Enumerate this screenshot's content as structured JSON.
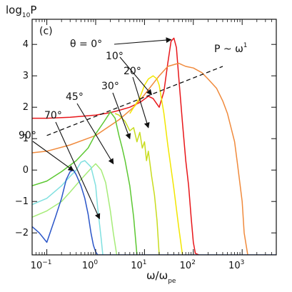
{
  "chart_data": {
    "type": "line",
    "panel_label": "(c)",
    "xlabel": "ω/ω",
    "xlabel_sub": "pe",
    "ylabel": "log",
    "ylabel_sub": "10",
    "ylabel_suffix": "P",
    "xscale": "log",
    "xlim": [
      0.05,
      5000
    ],
    "ylim": [
      -2.7,
      4.8
    ],
    "x_tick_labels": [
      {
        "base": "10",
        "exp": "−1",
        "value": 0.1
      },
      {
        "base": "10",
        "exp": "0",
        "value": 1
      },
      {
        "base": "10",
        "exp": "1",
        "value": 10
      },
      {
        "base": "10",
        "exp": "2",
        "value": 100
      },
      {
        "base": "10",
        "exp": "3",
        "value": 1000
      }
    ],
    "y_ticks": [
      -2,
      -1,
      0,
      1,
      2,
      3,
      4
    ],
    "y_tick_labels": [
      "−2",
      "−1",
      "0",
      "1",
      "2",
      "3",
      "4"
    ],
    "grid": false,
    "reference_line": {
      "label": "P ~ ω",
      "label_sup": "1",
      "style": "dashed",
      "color": "#111111",
      "x": [
        0.1,
        400
      ],
      "y": [
        1.1,
        3.3
      ]
    },
    "series": [
      {
        "name": "θ = 0°",
        "color": "#e8161a",
        "angle_deg": 0,
        "peak": {
          "x": 40,
          "y": 4.2
        },
        "x": [
          0.05,
          0.1,
          0.3,
          1,
          2,
          3,
          5,
          8,
          12,
          15,
          18,
          20,
          25,
          30,
          35,
          40,
          45,
          50,
          60,
          70,
          80,
          90,
          100,
          110,
          130
        ],
        "y": [
          1.65,
          1.65,
          1.68,
          1.75,
          1.83,
          1.9,
          2.0,
          2.15,
          2.35,
          2.28,
          2.1,
          2.0,
          2.5,
          3.4,
          4.1,
          4.2,
          3.9,
          3.0,
          1.5,
          0.3,
          -0.5,
          -1.5,
          -2.3,
          -2.65,
          -2.7
        ]
      },
      {
        "name": "10°",
        "color": "#f08a3c",
        "angle_deg": 10,
        "x": [
          0.05,
          0.1,
          0.3,
          1,
          3,
          6,
          10,
          20,
          30,
          50,
          70,
          100,
          150,
          200,
          300,
          400,
          500,
          700,
          800,
          1000,
          1100,
          1300
        ],
        "y": [
          0.55,
          0.6,
          0.8,
          1.1,
          1.6,
          2.0,
          2.4,
          3.0,
          3.3,
          3.4,
          3.3,
          3.25,
          3.1,
          2.9,
          2.6,
          2.2,
          1.8,
          0.9,
          0.2,
          -1.0,
          -2.0,
          -2.7
        ]
      },
      {
        "name": "20°",
        "color": "#f2e600",
        "angle_deg": 20,
        "x": [
          5,
          8,
          10,
          12,
          15,
          18,
          20,
          25,
          30,
          40,
          50,
          60
        ],
        "y": [
          1.8,
          2.3,
          2.7,
          2.9,
          3.0,
          2.9,
          2.7,
          1.8,
          0.8,
          -0.6,
          -1.8,
          -2.7
        ]
      },
      {
        "name": "30°",
        "color": "#c8dc1e",
        "angle_deg": 30,
        "x": [
          2.5,
          3,
          4,
          5,
          6,
          7,
          8,
          9,
          10,
          11,
          12,
          14,
          16,
          18,
          20
        ],
        "y": [
          1.8,
          1.75,
          1.55,
          1.25,
          1.35,
          0.9,
          1.2,
          0.7,
          0.9,
          0.3,
          0.6,
          -0.2,
          -0.8,
          -1.6,
          -2.7
        ]
      },
      {
        "name": "45°",
        "color": "#5cc832",
        "angle_deg": 45,
        "x": [
          0.05,
          0.1,
          0.2,
          0.4,
          0.7,
          1,
          1.5,
          2,
          2.5,
          3,
          3.5,
          4,
          5,
          6,
          7
        ],
        "y": [
          -0.5,
          -0.35,
          -0.05,
          0.3,
          0.7,
          1.15,
          1.55,
          1.85,
          1.65,
          1.1,
          0.7,
          0.3,
          -0.5,
          -1.5,
          -2.7
        ]
      },
      {
        "name": "70°",
        "color": "#a6ec78",
        "angle_deg": 70,
        "x": [
          0.05,
          0.1,
          0.2,
          0.3,
          0.5,
          0.8,
          1,
          1.3,
          1.6,
          2,
          2.3,
          2.7
        ],
        "y": [
          -1.5,
          -1.3,
          -1.0,
          -0.7,
          -0.3,
          0.05,
          0.2,
          0.0,
          -0.4,
          -1.3,
          -2.0,
          -2.7
        ]
      },
      {
        "name": "",
        "color": "#80e0e0",
        "x": [
          0.05,
          0.1,
          0.2,
          0.3,
          0.4,
          0.5,
          0.6,
          0.8,
          1.0,
          1.1,
          1.3,
          1.4
        ],
        "y": [
          -1.1,
          -0.9,
          -0.5,
          -0.2,
          0.0,
          0.25,
          0.3,
          0.1,
          -0.5,
          -1.2,
          -2.2,
          -2.7
        ]
      },
      {
        "name": "90°",
        "color": "#2a55c8",
        "angle_deg": 90,
        "x": [
          0.05,
          0.07,
          0.1,
          0.15,
          0.2,
          0.25,
          0.3,
          0.35,
          0.4,
          0.5,
          0.6,
          0.7,
          0.8,
          0.9,
          1.0,
          1.1,
          5000
        ],
        "y": [
          -1.8,
          -2.0,
          -2.3,
          -1.5,
          -0.9,
          -0.3,
          -0.05,
          0.0,
          -0.15,
          -0.5,
          -0.9,
          -1.4,
          -2.0,
          -2.4,
          -2.6,
          -2.7,
          -2.7
        ]
      }
    ],
    "annotations": [
      {
        "label": "θ = 0°",
        "target": {
          "x": 35,
          "y": 4.15
        }
      },
      {
        "label": "10°",
        "target": {
          "x": 14,
          "y": 2.4
        }
      },
      {
        "label": "20°",
        "target": {
          "x": 12,
          "y": 1.35
        }
      },
      {
        "label": "30°",
        "target": {
          "x": 5,
          "y": 1.0
        }
      },
      {
        "label": "45°",
        "target": {
          "x": 2.3,
          "y": 0.2
        }
      },
      {
        "label": "70°",
        "target": {
          "x": 1.2,
          "y": -1.55
        }
      },
      {
        "label": "90°",
        "target": {
          "x": 0.35,
          "y": -0.02
        }
      }
    ]
  }
}
